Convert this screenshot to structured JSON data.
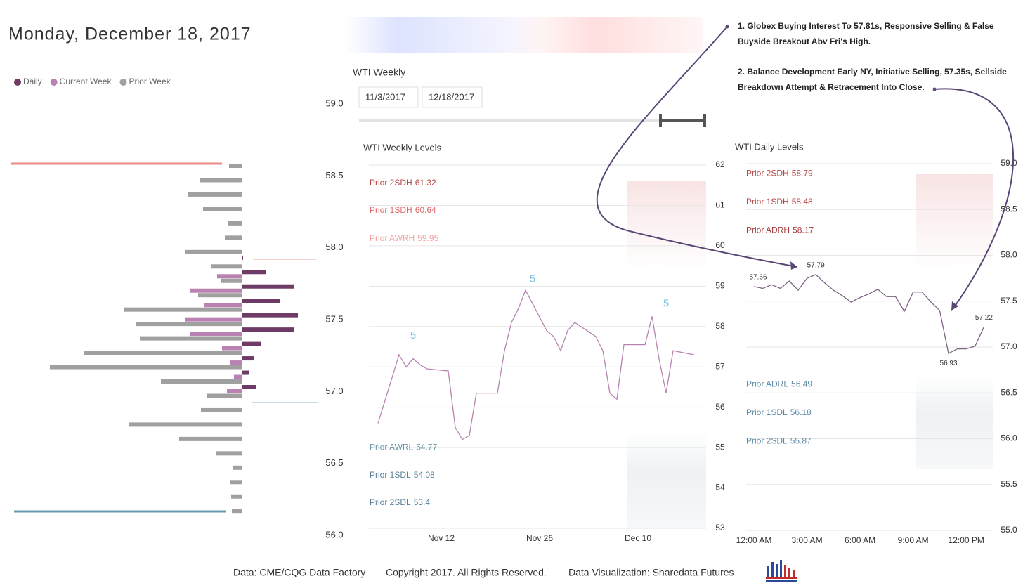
{
  "header": {
    "title": "Monday, December 18, 2017"
  },
  "slicer": {
    "title": "WTI Weekly",
    "start": "11/3/2017",
    "end": "12/18/2017"
  },
  "notes": [
    "1. Globex Buying Interest To 57.81s, Responsive Selling & False Buyside Breakout Abv Fri's High.",
    "2. Balance Development Early NY, Initiative Selling, 57.35s, Sellside Breakdown Attempt & Retracement Into Close."
  ],
  "footer": [
    "Data: CME/CQG Data Factory",
    "Copyright 2017. All Rights Reserved.",
    "Data Visualization: Sharedata Futures"
  ],
  "chart_data": [
    {
      "type": "profile",
      "y": [
        58.57,
        58.47,
        58.37,
        58.27,
        58.17,
        58.07,
        57.97,
        57.87,
        57.77,
        57.67,
        57.57,
        57.47,
        57.37,
        57.27,
        57.17,
        57.07,
        56.97,
        56.87,
        56.77,
        56.67,
        56.57,
        56.47,
        56.37,
        56.27,
        56.17
      ],
      "series": [
        {
          "name": "Daily",
          "color": "#6e3b67",
          "values": [
            null,
            null,
            null,
            null,
            null,
            null,
            2,
            34,
            74,
            54,
            80,
            74,
            28,
            17,
            10,
            21,
            null,
            null,
            null,
            null,
            null,
            null,
            null,
            null,
            null
          ]
        },
        {
          "name": "Current Week",
          "color": "#ba82b3",
          "values": [
            null,
            null,
            null,
            null,
            null,
            null,
            null,
            35,
            74,
            54,
            81,
            74,
            28,
            17,
            11,
            21,
            null,
            null,
            null,
            null,
            null,
            null,
            null,
            null,
            null
          ]
        },
        {
          "name": "Prior Week",
          "color": "#a0a0a0",
          "values": [
            18,
            59,
            76,
            55,
            20,
            24,
            81,
            43,
            30,
            62,
            167,
            150,
            145,
            224,
            273,
            115,
            50,
            58,
            160,
            89,
            37,
            13,
            16,
            15,
            14
          ]
        }
      ],
      "ylim": [
        56,
        59
      ],
      "yticks": [
        {
          "value": 59,
          "label": "59.0"
        },
        {
          "value": 58.5,
          "label": "58.5"
        },
        {
          "value": 58,
          "label": "58.0"
        },
        {
          "value": 57.5,
          "label": "57.5"
        },
        {
          "value": 57,
          "label": "57.0"
        },
        {
          "value": 56.5,
          "label": "56.5"
        },
        {
          "value": 56,
          "label": "56.0"
        }
      ]
    },
    {
      "type": "line",
      "title": "WTI Weekly Levels",
      "x": [
        "Nov 3",
        "Nov 6",
        "Nov 7",
        "Nov 8",
        "Nov 9",
        "Nov 10",
        "Nov 13",
        "Nov 14",
        "Nov 15",
        "Nov 16",
        "Nov 17",
        "Nov 20",
        "Nov 21",
        "Nov 22",
        "Nov 23",
        "Nov 24",
        "Nov 27",
        "Nov 28",
        "Nov 29",
        "Nov 30",
        "Dec 1",
        "Dec 4",
        "Dec 5",
        "Dec 6",
        "Dec 7",
        "Dec 8",
        "Dec 11",
        "Dec 12",
        "Dec 13",
        "Dec 14",
        "Dec 15",
        "Dec 18"
      ],
      "series": [
        {
          "color": "#b784b1",
          "values": [
            55.6,
            57.3,
            57.0,
            57.2,
            57.05,
            56.95,
            56.9,
            55.5,
            55.2,
            55.3,
            56.35,
            56.35,
            57.4,
            58.1,
            58.45,
            58.9,
            57.9,
            57.75,
            57.4,
            57.9,
            58.1,
            57.75,
            57.4,
            56.35,
            56.2,
            57.55,
            57.55,
            58.25,
            57.2,
            56.35,
            57.4,
            57.3
          ]
        }
      ],
      "xlim": [
        "Nov 2",
        "Dec 19"
      ],
      "xticks": [
        "Nov 12",
        "Nov 26",
        "Dec 10"
      ],
      "ylim": [
        53,
        62
      ],
      "yticks": [
        53,
        54,
        55,
        56,
        57,
        58,
        59,
        60,
        61,
        62
      ],
      "grid": true,
      "levels": [
        {
          "label": "Prior 2SDH",
          "value": 61.32,
          "color": "#b84545"
        },
        {
          "label": "Prior 1SDH",
          "value": 60.64,
          "color": "#e06a6a"
        },
        {
          "label": "Prior AWRH",
          "value": 59.95,
          "color": "#f0a3a3"
        },
        {
          "label": "Prior AWRL",
          "value": 54.77,
          "color": "#6b97ad"
        },
        {
          "label": "Prior 1SDL",
          "value": 54.08,
          "color": "#5a8199"
        },
        {
          "label": "Prior 2SDL",
          "value": 53.4,
          "color": "#5a8199"
        }
      ],
      "annotations": [
        {
          "text": "5",
          "x": "Nov 8",
          "y": 57.77,
          "color": "#7ec3dd"
        },
        {
          "text": "5",
          "x": "Nov 25",
          "y": 59.17,
          "color": "#7ec3dd"
        },
        {
          "text": "5",
          "x": "Dec 14",
          "y": 58.56,
          "color": "#7ec3dd"
        }
      ]
    },
    {
      "type": "line",
      "title": "WTI Daily Levels",
      "x": [
        "12:00 AM",
        "12:30 AM",
        "1:00 AM",
        "1:30 AM",
        "2:00 AM",
        "2:30 AM",
        "3:00 AM",
        "3:30 AM",
        "4:00 AM",
        "4:30 AM",
        "5:00 AM",
        "5:30 AM",
        "6:00 AM",
        "6:30 AM",
        "7:00 AM",
        "7:30 AM",
        "8:00 AM",
        "8:30 AM",
        "9:00 AM",
        "9:30 AM",
        "10:00 AM",
        "10:30 AM",
        "11:00 AM",
        "11:30 AM",
        "12:00 PM",
        "12:30 PM",
        "1:00 PM"
      ],
      "series": [
        {
          "color": "#7d6283",
          "values": [
            57.66,
            57.64,
            57.68,
            57.64,
            57.72,
            57.62,
            57.75,
            57.79,
            57.7,
            57.62,
            57.56,
            57.49,
            57.54,
            57.58,
            57.63,
            57.55,
            57.55,
            57.39,
            57.6,
            57.6,
            57.49,
            57.4,
            56.93,
            56.98,
            56.98,
            57.01,
            57.22
          ]
        }
      ],
      "data_labels": [
        0,
        7,
        22,
        26
      ],
      "xlim": [
        "12:00 AM",
        "1:30 PM"
      ],
      "xticks": [
        "12:00 AM",
        "3:00 AM",
        "6:00 AM",
        "9:00 AM",
        "12:00 PM"
      ],
      "ylim": [
        55,
        59
      ],
      "yticks": [
        {
          "value": 55,
          "label": "55.0"
        },
        {
          "value": 55.5,
          "label": "55.5"
        },
        {
          "value": 56,
          "label": "56.0"
        },
        {
          "value": 56.5,
          "label": "56.5"
        },
        {
          "value": 57,
          "label": "57.0"
        },
        {
          "value": 57.5,
          "label": "57.5"
        },
        {
          "value": 58,
          "label": "58.0"
        },
        {
          "value": 58.5,
          "label": "58.5"
        },
        {
          "value": 59,
          "label": "59.0"
        }
      ],
      "grid": true,
      "levels": [
        {
          "label": "Prior 2SDH",
          "value": 58.79,
          "color": "#b84545"
        },
        {
          "label": "Prior 1SDH",
          "value": 58.48,
          "color": "#b84545"
        },
        {
          "label": "Prior ADRH",
          "value": 58.17,
          "color": "#a83a3a"
        },
        {
          "label": "Prior ADRL",
          "value": 56.49,
          "color": "#5b8aa6"
        },
        {
          "label": "Prior 1SDL",
          "value": 56.18,
          "color": "#5b8aa6"
        },
        {
          "label": "Prior 2SDL",
          "value": 55.87,
          "color": "#5b8aa6"
        }
      ]
    }
  ]
}
